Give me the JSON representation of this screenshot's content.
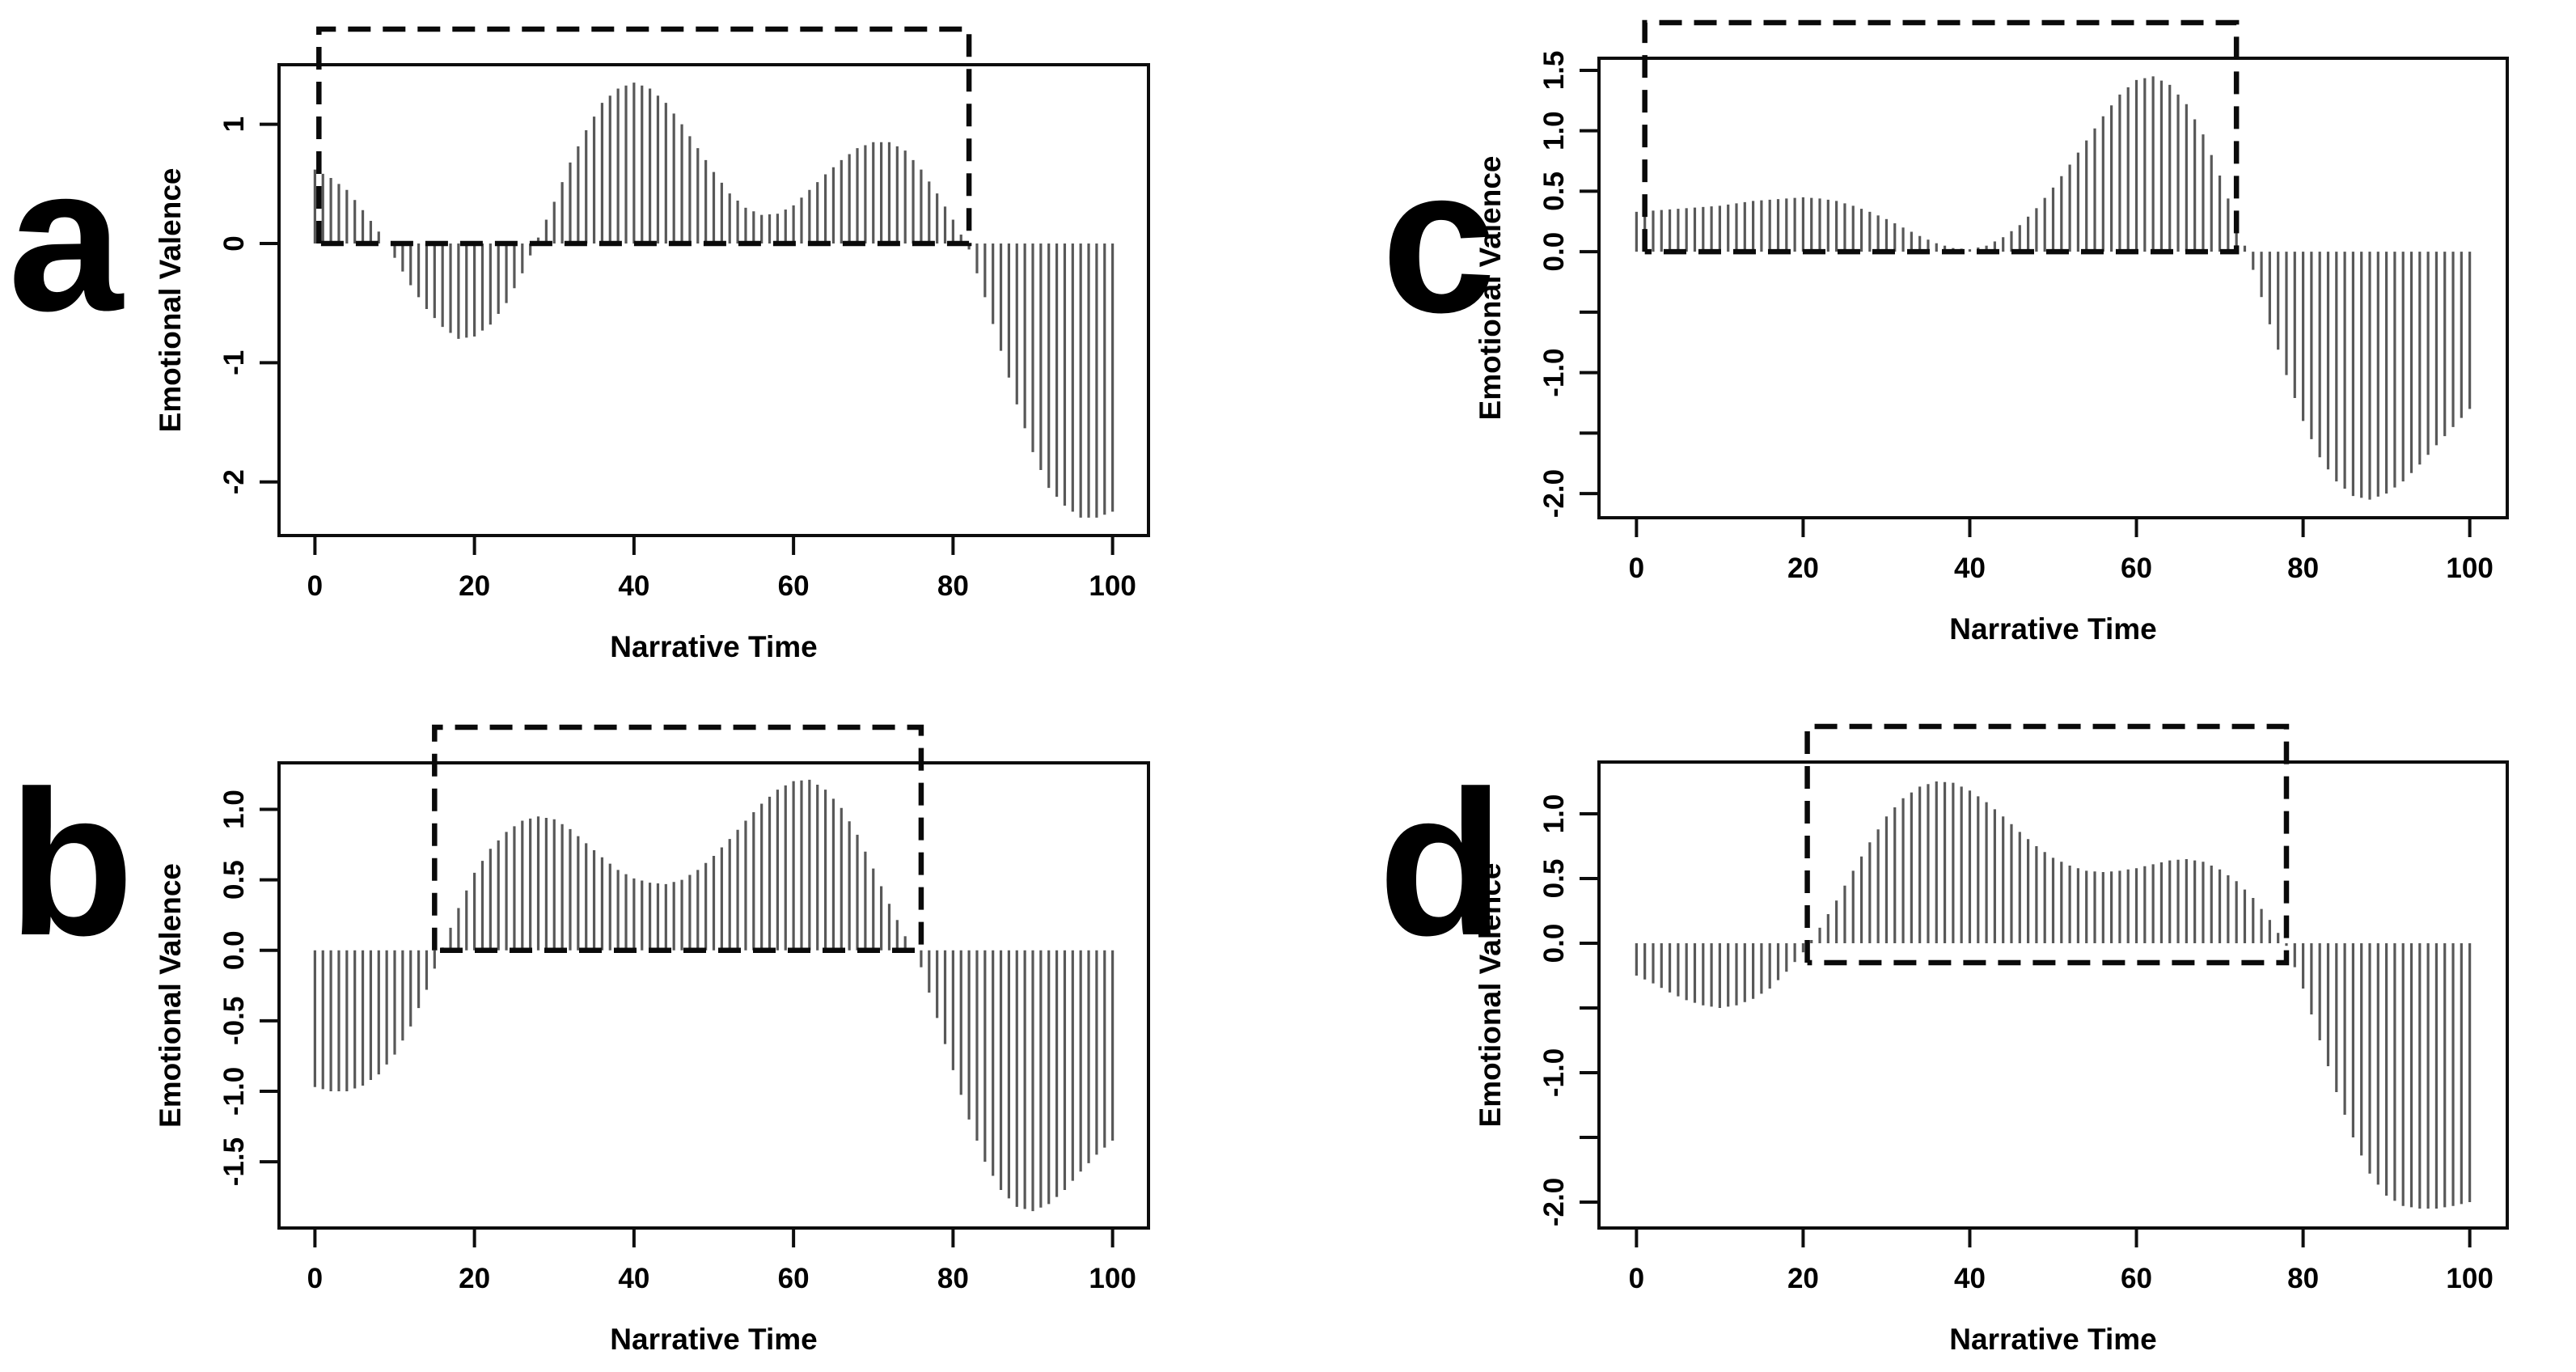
{
  "figure": {
    "xlabel": "Narrative Time",
    "ylabel": "Emotional Valence",
    "x_ticks": [
      0,
      20,
      40,
      60,
      80,
      100
    ],
    "x": [
      0,
      2,
      4,
      6,
      8,
      10,
      12,
      14,
      16,
      18,
      20,
      22,
      24,
      26,
      28,
      30,
      32,
      34,
      36,
      38,
      40,
      42,
      44,
      46,
      48,
      50,
      52,
      54,
      56,
      58,
      60,
      62,
      64,
      66,
      68,
      70,
      72,
      74,
      76,
      78,
      80,
      82,
      84,
      86,
      88,
      90,
      92,
      94,
      96,
      98,
      100
    ],
    "colors": {
      "background": "#ffffff",
      "bars": "#585858",
      "axis": "#0d0d0d",
      "highlight_box": "#0a0a0a",
      "text": "#000000"
    }
  },
  "chart_data": [
    {
      "id": "a",
      "type": "bar",
      "title": "",
      "xlabel": "Narrative Time",
      "ylabel": "Emotional Valence",
      "xticks": [
        0,
        20,
        40,
        60,
        80,
        100
      ],
      "ylim": [
        -2.45,
        1.5
      ],
      "yticks": [
        {
          "v": 1,
          "label": "1"
        },
        {
          "v": 0,
          "label": "0"
        },
        {
          "v": -1,
          "label": "-1"
        },
        {
          "v": -2,
          "label": "-2"
        }
      ],
      "values": [
        0.62,
        0.55,
        0.45,
        0.28,
        0.1,
        -0.12,
        -0.35,
        -0.55,
        -0.7,
        -0.8,
        -0.78,
        -0.68,
        -0.5,
        -0.25,
        0.05,
        0.35,
        0.68,
        0.95,
        1.18,
        1.3,
        1.35,
        1.3,
        1.18,
        1.0,
        0.8,
        0.6,
        0.42,
        0.3,
        0.24,
        0.25,
        0.32,
        0.45,
        0.58,
        0.7,
        0.8,
        0.85,
        0.85,
        0.78,
        0.62,
        0.42,
        0.2,
        -0.05,
        -0.45,
        -0.9,
        -1.35,
        -1.75,
        -2.05,
        -2.2,
        -2.3,
        -2.3,
        -2.25
      ],
      "highlight": {
        "x0": 0.5,
        "x1": 82,
        "y0": 0,
        "extends_above_plot_top": true
      }
    },
    {
      "id": "b",
      "type": "bar",
      "title": "",
      "xlabel": "Narrative Time",
      "ylabel": "Emotional Valence",
      "xticks": [
        0,
        20,
        40,
        60,
        80,
        100
      ],
      "ylim": [
        -1.97,
        1.33
      ],
      "yticks": [
        {
          "v": 1.0,
          "label": "1.0"
        },
        {
          "v": 0.5,
          "label": "0.5"
        },
        {
          "v": 0.0,
          "label": "0.0"
        },
        {
          "v": -0.5,
          "label": "-0.5"
        },
        {
          "v": -1.0,
          "label": "-1.0"
        },
        {
          "v": -1.5,
          "label": "-1.5"
        }
      ],
      "values": [
        -0.97,
        -1.0,
        -1.0,
        -0.96,
        -0.88,
        -0.74,
        -0.54,
        -0.28,
        0.02,
        0.3,
        0.55,
        0.72,
        0.84,
        0.92,
        0.95,
        0.93,
        0.86,
        0.76,
        0.66,
        0.57,
        0.51,
        0.48,
        0.47,
        0.5,
        0.57,
        0.67,
        0.79,
        0.92,
        1.04,
        1.14,
        1.2,
        1.21,
        1.14,
        1.01,
        0.82,
        0.58,
        0.33,
        0.1,
        -0.12,
        -0.48,
        -0.85,
        -1.2,
        -1.5,
        -1.7,
        -1.82,
        -1.85,
        -1.8,
        -1.7,
        -1.57,
        -1.45,
        -1.35
      ],
      "highlight": {
        "x0": 15,
        "x1": 76,
        "y0": 0,
        "extends_above_plot_top": true
      }
    },
    {
      "id": "c",
      "type": "bar",
      "title": "",
      "xlabel": "Narrative Time",
      "ylabel": "Emotional Valence",
      "xticks": [
        0,
        20,
        40,
        60,
        80,
        100
      ],
      "ylim": [
        -2.2,
        1.6
      ],
      "yticks": [
        {
          "v": 1.5,
          "label": "1.5"
        },
        {
          "v": 1.0,
          "label": "1.0"
        },
        {
          "v": 0.5,
          "label": "0.5"
        },
        {
          "v": 0.0,
          "label": "0.0"
        },
        {
          "v": -0.5,
          "label": ""
        },
        {
          "v": -1.0,
          "label": "-1.0"
        },
        {
          "v": -1.5,
          "label": ""
        },
        {
          "v": -2.0,
          "label": "-2.0"
        }
      ],
      "values": [
        0.33,
        0.34,
        0.35,
        0.36,
        0.37,
        0.38,
        0.4,
        0.42,
        0.43,
        0.44,
        0.45,
        0.44,
        0.42,
        0.38,
        0.33,
        0.27,
        0.2,
        0.13,
        0.07,
        0.03,
        0.02,
        0.05,
        0.12,
        0.22,
        0.36,
        0.53,
        0.72,
        0.92,
        1.12,
        1.3,
        1.42,
        1.45,
        1.38,
        1.22,
        0.97,
        0.63,
        0.25,
        -0.15,
        -0.6,
        -1.02,
        -1.4,
        -1.7,
        -1.9,
        -2.02,
        -2.05,
        -2.0,
        -1.9,
        -1.76,
        -1.6,
        -1.45,
        -1.3
      ],
      "highlight": {
        "x0": 1,
        "x1": 72,
        "y0": 0,
        "extends_above_plot_top": true
      }
    },
    {
      "id": "d",
      "type": "bar",
      "title": "",
      "xlabel": "Narrative Time",
      "ylabel": "Emotional Valence",
      "xticks": [
        0,
        20,
        40,
        60,
        80,
        100
      ],
      "ylim": [
        -2.2,
        1.4
      ],
      "yticks": [
        {
          "v": 1.0,
          "label": "1.0"
        },
        {
          "v": 0.5,
          "label": "0.5"
        },
        {
          "v": 0.0,
          "label": "0.0"
        },
        {
          "v": -0.5,
          "label": ""
        },
        {
          "v": -1.0,
          "label": "-1.0"
        },
        {
          "v": -1.5,
          "label": ""
        },
        {
          "v": -2.0,
          "label": "-2.0"
        }
      ],
      "values": [
        -0.25,
        -0.31,
        -0.38,
        -0.44,
        -0.48,
        -0.5,
        -0.48,
        -0.43,
        -0.35,
        -0.22,
        -0.07,
        0.12,
        0.33,
        0.56,
        0.78,
        0.98,
        1.12,
        1.21,
        1.25,
        1.24,
        1.18,
        1.09,
        0.98,
        0.86,
        0.75,
        0.66,
        0.6,
        0.56,
        0.55,
        0.56,
        0.58,
        0.61,
        0.64,
        0.65,
        0.63,
        0.57,
        0.48,
        0.35,
        0.18,
        -0.02,
        -0.35,
        -0.75,
        -1.15,
        -1.5,
        -1.78,
        -1.95,
        -2.03,
        -2.05,
        -2.05,
        -2.03,
        -2.0
      ],
      "highlight": {
        "x0": 20.5,
        "x1": 78,
        "y0": -0.15,
        "extends_above_plot_top": true
      }
    }
  ]
}
